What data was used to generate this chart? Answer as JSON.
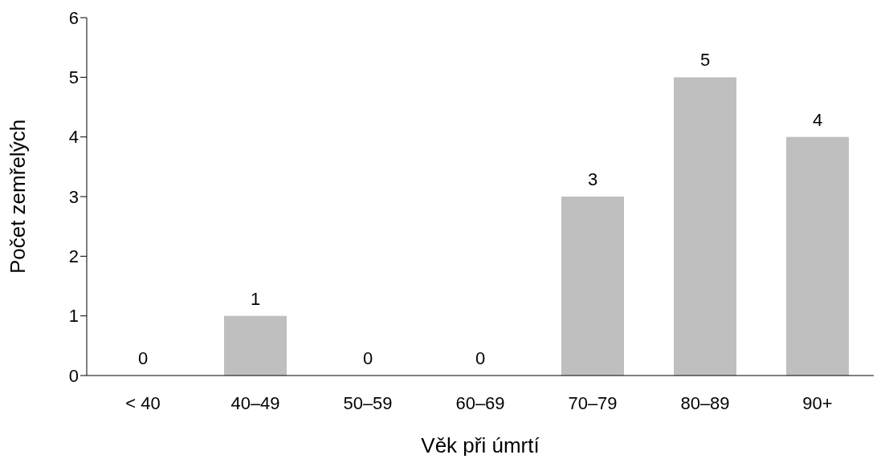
{
  "chart_data": {
    "type": "bar",
    "xlabel": "Věk při úmrtí",
    "ylabel": "Počet zemřelých",
    "categories": [
      "< 40",
      "40–49",
      "50–59",
      "60–69",
      "70–79",
      "80–89",
      "90+"
    ],
    "values": [
      0,
      1,
      0,
      0,
      3,
      5,
      4
    ],
    "color": "#bfbfbf",
    "ylim": [
      0,
      6
    ],
    "yticks": [
      0,
      1,
      2,
      3,
      4,
      5,
      6
    ],
    "grid": false,
    "legend": false,
    "data_labels": true
  }
}
